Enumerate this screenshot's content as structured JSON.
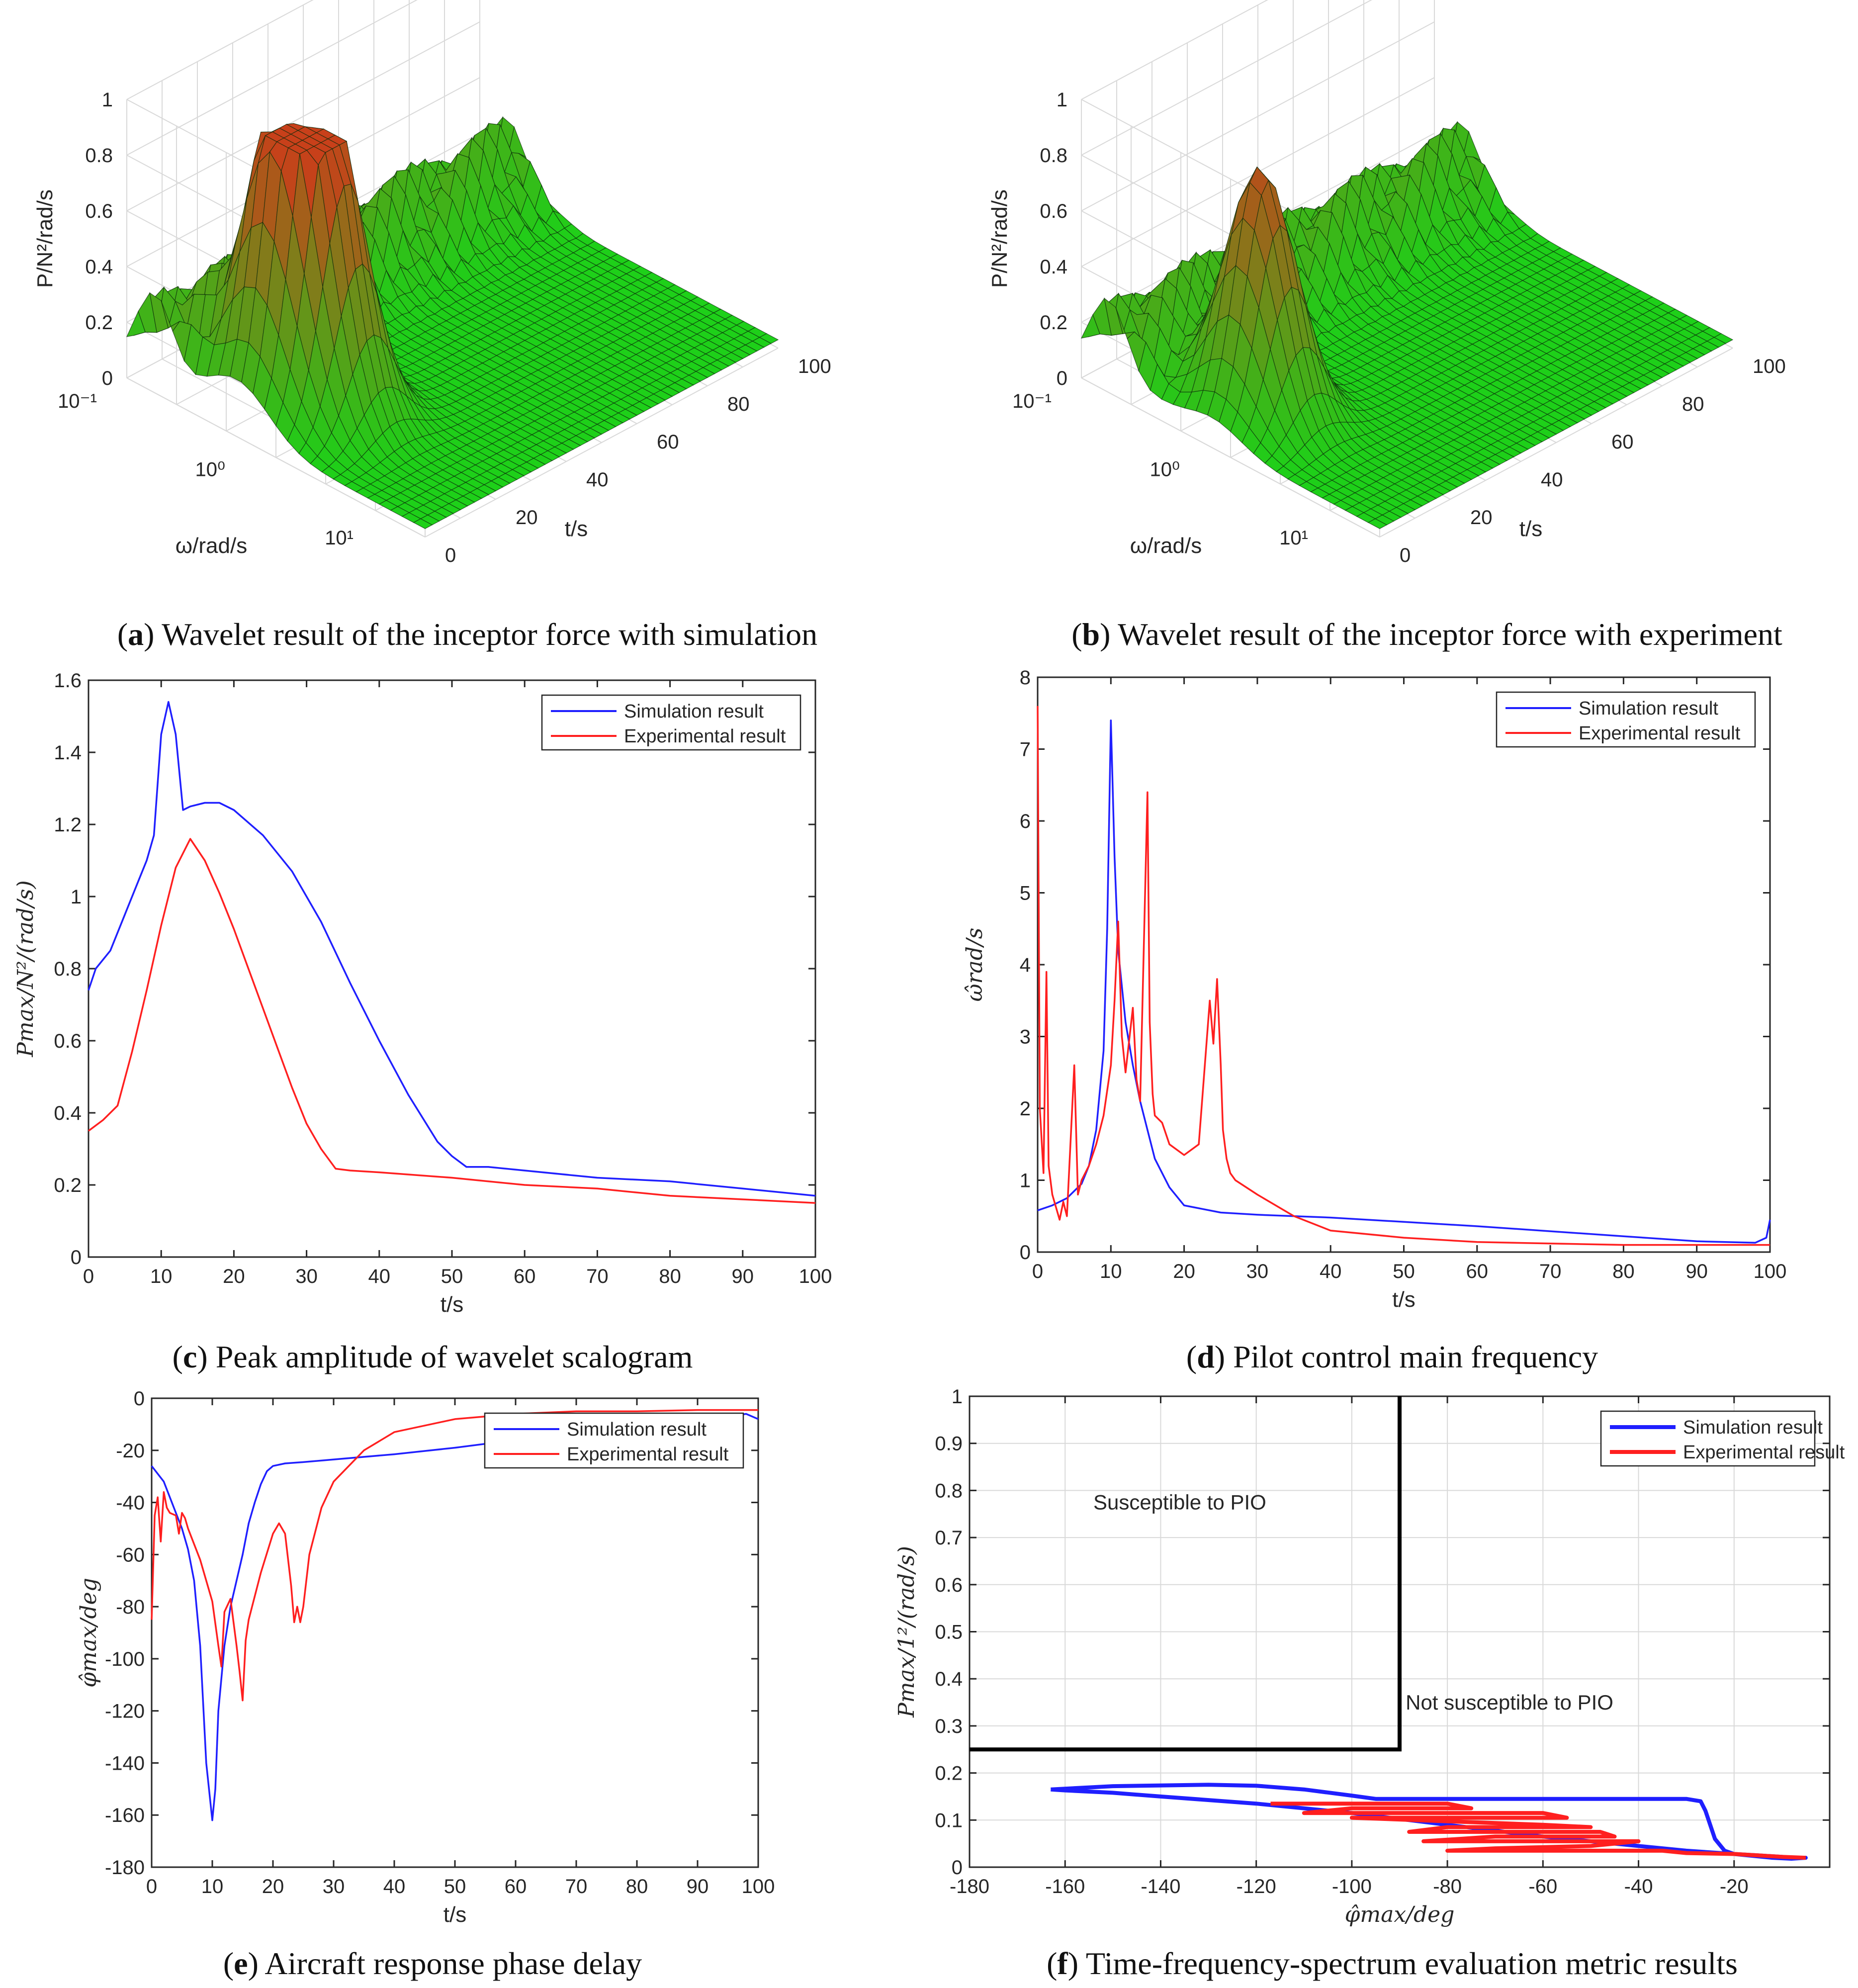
{
  "colors": {
    "simulation": "#1f1fff",
    "experimental": "#ff1f1f",
    "surface_low": "#19d419",
    "surface_high": "#c8401a",
    "boundary": "#000000"
  },
  "captions": {
    "a_letter": "a",
    "a_text": ") Wavelet result of the inceptor force with simulation",
    "b_letter": "b",
    "b_text": ") Wavelet result of the inceptor force with experiment",
    "c_letter": "c",
    "c_text": ") Peak amplitude of wavelet scalogram",
    "d_letter": "d",
    "d_text": ") Pilot control main frequency",
    "e_letter": "e",
    "e_text": ") Aircraft response phase delay",
    "f_letter": "f",
    "f_text": ") Time-frequency-spectrum evaluation metric results"
  },
  "chart_data": [
    {
      "id": "a",
      "type": "surface3d",
      "zlabel": "P/N²/rad/s",
      "xlabel": "ω/rad/s",
      "ylabel": "t/s",
      "zticks": [
        "0",
        "0.2",
        "0.4",
        "0.6",
        "0.8",
        "1"
      ],
      "wticks": [
        "10⁻¹",
        "10⁰",
        "10¹"
      ],
      "tticks": [
        "0",
        "20",
        "40",
        "60",
        "80",
        "100"
      ],
      "peaks": [
        {
          "t": 12,
          "log_omega": -0.15,
          "p": 0.97
        },
        {
          "t": 18,
          "log_omega": 0.1,
          "p": 0.85
        }
      ],
      "base_level": 0.3
    },
    {
      "id": "b",
      "type": "surface3d",
      "zlabel": "P/N²/rad/s",
      "xlabel": "ω/rad/s",
      "ylabel": "t/s",
      "zticks": [
        "0",
        "0.2",
        "0.4",
        "0.6",
        "0.8",
        "1"
      ],
      "wticks": [
        "10⁻¹",
        "10⁰",
        "10¹"
      ],
      "tticks": [
        "0",
        "20",
        "40",
        "60",
        "80",
        "100"
      ],
      "peaks": [
        {
          "t": 14,
          "log_omega": 0.0,
          "p": 0.88
        }
      ],
      "base_level": 0.28
    },
    {
      "id": "c",
      "type": "line",
      "xlabel": "t/s",
      "ylabel": "Pmax/N²/(rad/s)",
      "xlim": [
        0,
        100
      ],
      "ylim": [
        0,
        1.6
      ],
      "xticks": [
        0,
        10,
        20,
        30,
        40,
        50,
        60,
        70,
        80,
        90,
        100
      ],
      "yticks": [
        0,
        0.2,
        0.4,
        0.6,
        0.8,
        1,
        1.2,
        1.4,
        1.6
      ],
      "legend": [
        "Simulation result",
        "Experimental result"
      ],
      "legend_position": "top-right",
      "series": [
        {
          "name": "Simulation result",
          "x": [
            0,
            1,
            3,
            5,
            7,
            8,
            9,
            10,
            11,
            12,
            13,
            14,
            16,
            18,
            20,
            24,
            28,
            32,
            36,
            40,
            44,
            48,
            50,
            52,
            55,
            60,
            70,
            80,
            90,
            100
          ],
          "y": [
            0.74,
            0.8,
            0.85,
            0.95,
            1.05,
            1.1,
            1.17,
            1.45,
            1.54,
            1.45,
            1.24,
            1.25,
            1.26,
            1.26,
            1.24,
            1.17,
            1.07,
            0.93,
            0.76,
            0.6,
            0.45,
            0.32,
            0.28,
            0.25,
            0.25,
            0.24,
            0.22,
            0.21,
            0.19,
            0.17
          ]
        },
        {
          "name": "Experimental result",
          "x": [
            0,
            2,
            4,
            6,
            8,
            10,
            12,
            14,
            16,
            18,
            20,
            22,
            24,
            26,
            28,
            30,
            32,
            34,
            36,
            40,
            50,
            60,
            70,
            80,
            90,
            100
          ],
          "y": [
            0.35,
            0.38,
            0.42,
            0.57,
            0.74,
            0.92,
            1.08,
            1.16,
            1.1,
            1.01,
            0.91,
            0.8,
            0.69,
            0.58,
            0.47,
            0.37,
            0.3,
            0.245,
            0.24,
            0.235,
            0.22,
            0.2,
            0.19,
            0.17,
            0.16,
            0.15
          ]
        }
      ]
    },
    {
      "id": "d",
      "type": "line",
      "xlabel": "t/s",
      "ylabel": "ω̂rad/s",
      "xlim": [
        0,
        100
      ],
      "ylim": [
        0,
        8
      ],
      "xticks": [
        0,
        10,
        20,
        30,
        40,
        50,
        60,
        70,
        80,
        90,
        100
      ],
      "yticks": [
        0,
        1,
        2,
        3,
        4,
        5,
        6,
        7,
        8
      ],
      "legend": [
        "Simulation result",
        "Experimental result"
      ],
      "legend_position": "top-right",
      "series": [
        {
          "name": "Simulation result",
          "x": [
            0,
            2,
            4,
            6,
            7,
            8,
            9,
            9.5,
            10,
            10.5,
            11,
            12,
            13,
            14,
            15,
            16,
            18,
            20,
            25,
            30,
            40,
            50,
            60,
            70,
            80,
            90,
            98,
            99.5,
            100
          ],
          "y": [
            0.58,
            0.65,
            0.75,
            0.95,
            1.2,
            1.7,
            2.8,
            4.5,
            7.4,
            5.5,
            4.2,
            3.2,
            2.6,
            2.1,
            1.7,
            1.3,
            0.9,
            0.65,
            0.55,
            0.52,
            0.48,
            0.42,
            0.36,
            0.29,
            0.22,
            0.15,
            0.13,
            0.2,
            0.45
          ]
        },
        {
          "name": "Experimental result",
          "x": [
            0,
            0.3,
            0.8,
            1.2,
            1.5,
            2,
            3,
            3.5,
            4,
            5,
            5.5,
            6,
            7,
            8,
            9,
            10,
            10.5,
            11,
            11.5,
            12,
            13,
            13.5,
            14,
            15,
            15.3,
            15.7,
            16,
            17,
            18,
            20,
            22,
            23.5,
            24,
            24.5,
            25,
            25.3,
            25.8,
            26.3,
            27,
            30,
            35,
            40,
            50,
            60,
            70,
            80,
            90,
            100
          ],
          "y": [
            7.6,
            2.0,
            1.1,
            3.9,
            1.2,
            0.8,
            0.45,
            0.7,
            0.5,
            2.6,
            0.8,
            1.0,
            1.2,
            1.5,
            1.9,
            2.6,
            3.5,
            4.6,
            3.0,
            2.5,
            3.4,
            2.4,
            2.1,
            6.4,
            3.2,
            2.2,
            1.9,
            1.8,
            1.5,
            1.35,
            1.5,
            3.5,
            2.9,
            3.8,
            2.6,
            1.7,
            1.3,
            1.1,
            1.0,
            0.8,
            0.5,
            0.3,
            0.2,
            0.14,
            0.12,
            0.1,
            0.1,
            0.1
          ]
        }
      ]
    },
    {
      "id": "e",
      "type": "line",
      "xlabel": "t/s",
      "ylabel": "φ̂max/deg",
      "xlim": [
        0,
        100
      ],
      "ylim": [
        -180,
        0
      ],
      "xticks": [
        0,
        10,
        20,
        30,
        40,
        50,
        60,
        70,
        80,
        90,
        100
      ],
      "yticks": [
        -180,
        -160,
        -140,
        -120,
        -100,
        -80,
        -60,
        -40,
        -20,
        0
      ],
      "legend": [
        "Simulation result",
        "Experimental result"
      ],
      "legend_position": "top-right",
      "series": [
        {
          "name": "Simulation result",
          "x": [
            0,
            2,
            4,
            5,
            6,
            7,
            8,
            9,
            10,
            10.5,
            11,
            12,
            13,
            14,
            15,
            16,
            17,
            18,
            19,
            20,
            22,
            25,
            30,
            40,
            50,
            60,
            70,
            80,
            90,
            98,
            100
          ],
          "y": [
            -26,
            -32,
            -44,
            -50,
            -58,
            -70,
            -95,
            -140,
            -162,
            -150,
            -120,
            -95,
            -80,
            -70,
            -60,
            -48,
            -40,
            -33,
            -28,
            -26,
            -25,
            -24.5,
            -23.5,
            -21.5,
            -19,
            -16,
            -13,
            -11,
            -9,
            -6,
            -8
          ]
        },
        {
          "name": "Experimental result",
          "x": [
            0,
            0.5,
            1,
            1.5,
            2,
            2.5,
            3,
            4,
            4.5,
            5,
            5.5,
            6,
            8,
            10,
            11,
            11.5,
            12,
            13,
            14,
            14.5,
            15,
            15.5,
            16,
            18,
            20,
            21,
            22,
            23,
            23.5,
            24,
            24.5,
            25,
            25.5,
            26,
            28,
            30,
            35,
            40,
            50,
            60,
            70,
            80,
            90,
            100
          ],
          "y": [
            -85,
            -45,
            -38,
            -55,
            -36,
            -42,
            -44,
            -45,
            -52,
            -44,
            -46,
            -50,
            -62,
            -78,
            -95,
            -103,
            -82,
            -77,
            -95,
            -105,
            -116,
            -93,
            -85,
            -67,
            -52,
            -48,
            -52,
            -72,
            -86,
            -80,
            -86,
            -80,
            -70,
            -60,
            -42,
            -32,
            -20,
            -13,
            -8,
            -6,
            -5,
            -5,
            -4.5,
            -4.5
          ]
        }
      ]
    },
    {
      "id": "f",
      "type": "line",
      "xlabel": "φ̂max/deg",
      "ylabel": "Pmax/1²/(rad/s)",
      "xlim": [
        -180,
        0
      ],
      "ylim": [
        0,
        1
      ],
      "grid": true,
      "xticks": [
        -180,
        -160,
        -140,
        -120,
        -100,
        -80,
        -60,
        -40,
        -20
      ],
      "yticks": [
        0,
        0.1,
        0.2,
        0.3,
        0.4,
        0.5,
        0.6,
        0.7,
        0.8,
        0.9,
        1
      ],
      "legend": [
        "Simulation result",
        "Experimental result"
      ],
      "legend_position": "top-right",
      "annotations": [
        "Susceptible to PIO",
        "Not susceptible to PIO"
      ],
      "boundary": {
        "x": [
          -180,
          -90,
          -90
        ],
        "y": [
          0.25,
          0.25,
          1
        ]
      },
      "series": [
        {
          "name": "Simulation result",
          "x": [
            -163,
            -150,
            -130,
            -120,
            -110,
            -100,
            -95,
            -90,
            -80,
            -60,
            -40,
            -30,
            -27,
            -26,
            -25,
            -24,
            -22,
            -20,
            -15,
            -10,
            -8,
            -5,
            -8,
            -12,
            -20,
            -30,
            -40,
            -60,
            -80,
            -100,
            -120,
            -140,
            -150,
            -160,
            -163
          ],
          "y": [
            0.165,
            0.172,
            0.175,
            0.173,
            0.165,
            0.152,
            0.145,
            0.145,
            0.145,
            0.145,
            0.145,
            0.145,
            0.14,
            0.12,
            0.09,
            0.06,
            0.035,
            0.028,
            0.025,
            0.022,
            0.02,
            0.02,
            0.018,
            0.02,
            0.028,
            0.035,
            0.045,
            0.065,
            0.09,
            0.115,
            0.135,
            0.15,
            0.158,
            0.163,
            0.165
          ]
        },
        {
          "name": "Experimental result",
          "x": [
            -117,
            -80,
            -75,
            -100,
            -110,
            -60,
            -55,
            -100,
            -60,
            -50,
            -80,
            -88,
            -48,
            -45,
            -70,
            -85,
            -40,
            -50,
            -70,
            -80,
            -35,
            -30,
            -20,
            -15,
            -10,
            -5
          ],
          "y": [
            0.135,
            0.135,
            0.125,
            0.125,
            0.115,
            0.115,
            0.105,
            0.105,
            0.09,
            0.085,
            0.085,
            0.075,
            0.075,
            0.065,
            0.065,
            0.055,
            0.055,
            0.045,
            0.04,
            0.035,
            0.035,
            0.03,
            0.028,
            0.025,
            0.022,
            0.02
          ]
        }
      ]
    }
  ]
}
